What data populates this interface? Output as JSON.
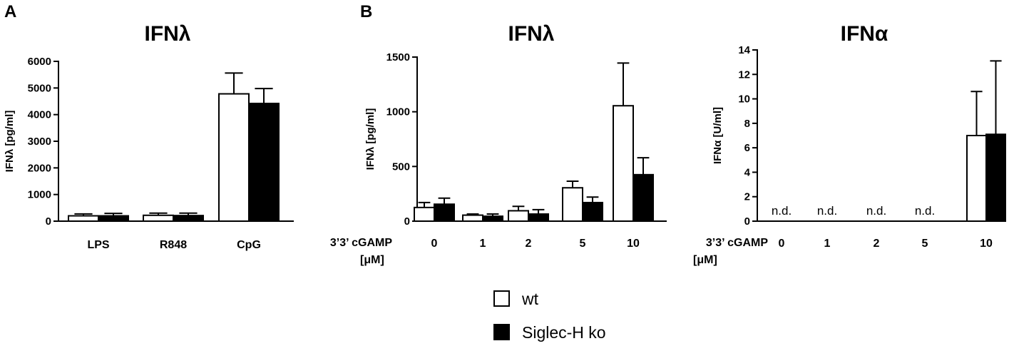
{
  "panel_labels": {
    "a": "A",
    "b": "B"
  },
  "legend": [
    {
      "label": "wt",
      "color": "#ffffff"
    },
    {
      "label": "Siglec-H ko",
      "color": "#000000"
    }
  ],
  "chart_data": [
    {
      "type": "bar",
      "title": "IFNλ",
      "ylabel": "IFNλ [pg/ml]",
      "xlabel": "",
      "ylim": [
        0,
        6000
      ],
      "yticks": [
        0,
        1000,
        2000,
        3000,
        4000,
        5000,
        6000
      ],
      "categories": [
        "LPS",
        "R848",
        "CpG"
      ],
      "series": [
        {
          "name": "wt",
          "color": "#ffffff",
          "values": [
            200,
            220,
            4780
          ],
          "errors": [
            70,
            80,
            780
          ]
        },
        {
          "name": "Siglec-H ko",
          "color": "#000000",
          "values": [
            200,
            210,
            4420
          ],
          "errors": [
            90,
            90,
            560
          ]
        }
      ]
    },
    {
      "type": "bar",
      "title": "IFNλ",
      "ylabel": "IFNλ [pg/ml]",
      "xlabel": "3’3’ cGAMP [μM]",
      "xlabel_lines": [
        "3’3’ cGAMP",
        "[μM]"
      ],
      "ylim": [
        0,
        1500
      ],
      "yticks": [
        0,
        500,
        1000,
        1500
      ],
      "categories": [
        "0",
        "1",
        "2",
        "5",
        "10"
      ],
      "series": [
        {
          "name": "wt",
          "color": "#ffffff",
          "values": [
            125,
            55,
            95,
            305,
            1055
          ],
          "errors": [
            45,
            10,
            40,
            60,
            390
          ]
        },
        {
          "name": "Siglec-H ko",
          "color": "#000000",
          "values": [
            155,
            45,
            65,
            170,
            425
          ],
          "errors": [
            55,
            20,
            40,
            50,
            155
          ]
        }
      ]
    },
    {
      "type": "bar",
      "title": "IFNα",
      "ylabel": "IFNα [U/ml]",
      "xlabel": "3’3’ cGAMP [μM]",
      "xlabel_lines": [
        "3’3’ cGAMP",
        "[μM]"
      ],
      "ylim": [
        0,
        14
      ],
      "yticks": [
        0,
        2,
        4,
        6,
        8,
        10,
        12,
        14
      ],
      "categories": [
        "0",
        "1",
        "2",
        "5",
        "10"
      ],
      "annotations": [
        "n.d.",
        "n.d.",
        "n.d.",
        "n.d.",
        ""
      ],
      "series": [
        {
          "name": "wt",
          "color": "#ffffff",
          "values": [
            null,
            null,
            null,
            null,
            7.0
          ],
          "errors": [
            null,
            null,
            null,
            null,
            3.6
          ]
        },
        {
          "name": "Siglec-H ko",
          "color": "#000000",
          "values": [
            null,
            null,
            null,
            null,
            7.1
          ],
          "errors": [
            null,
            null,
            null,
            null,
            6.0
          ]
        }
      ]
    }
  ]
}
